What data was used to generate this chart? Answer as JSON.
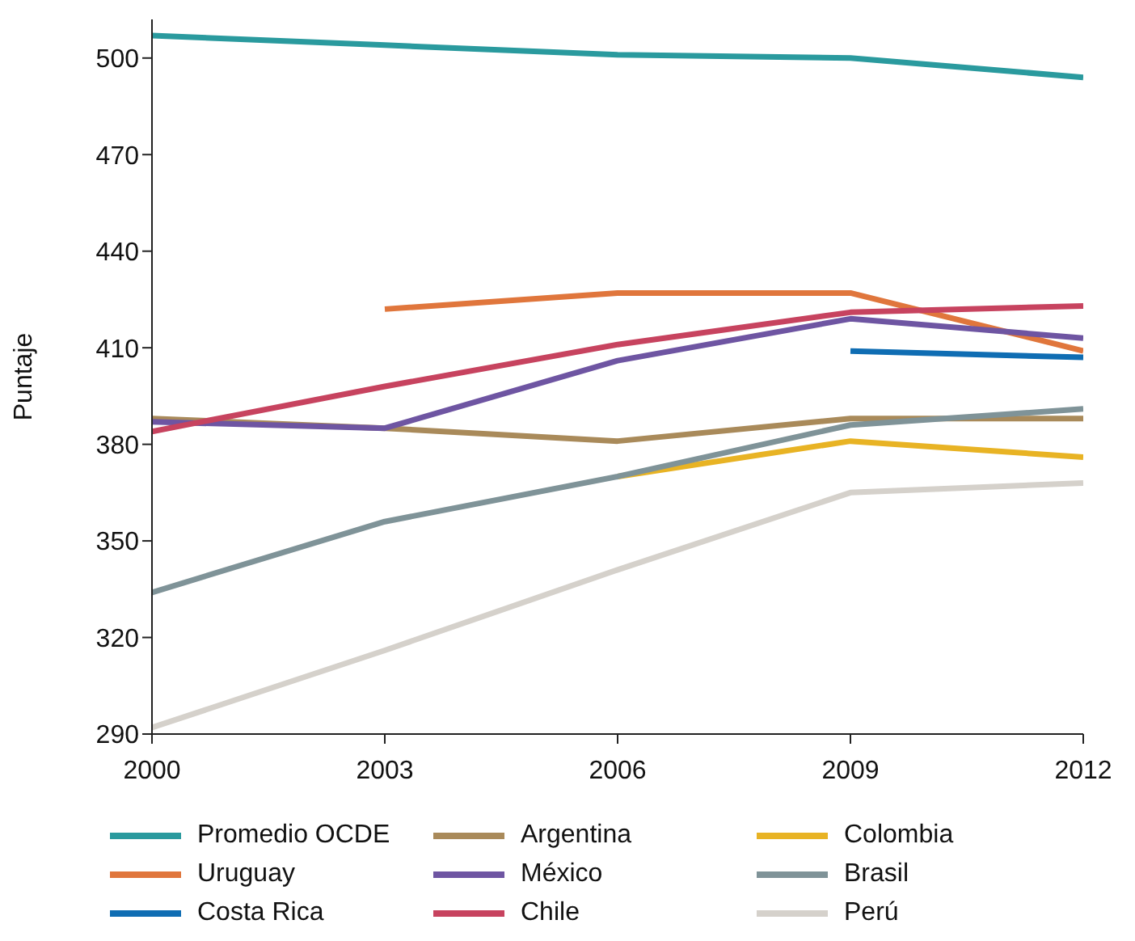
{
  "chart_data": {
    "type": "line",
    "ylabel": "Puntaje",
    "x": [
      2000,
      2003,
      2006,
      2009,
      2012
    ],
    "xlim": [
      2000,
      2012
    ],
    "xticks": [
      2000,
      2003,
      2006,
      2009,
      2012
    ],
    "ylim": [
      290,
      512
    ],
    "yticks": [
      290,
      320,
      350,
      380,
      410,
      440,
      470,
      500
    ],
    "grid": false,
    "legend": "bottom",
    "marker": "none",
    "line_style": "solid",
    "series": [
      {
        "name": "Promedio OCDE",
        "color": "#2a9a9e",
        "values": [
          507,
          504,
          501,
          500,
          494
        ]
      },
      {
        "name": "Argentina",
        "color": "#a98a5a",
        "values": [
          388,
          385,
          381,
          388,
          388
        ]
      },
      {
        "name": "Colombia",
        "color": "#e8b324",
        "values": [
          null,
          null,
          370,
          381,
          376
        ]
      },
      {
        "name": "Uruguay",
        "color": "#e0763c",
        "values": [
          null,
          422,
          427,
          427,
          409
        ]
      },
      {
        "name": "México",
        "color": "#6e55a2",
        "values": [
          387,
          385,
          406,
          419,
          413
        ]
      },
      {
        "name": "Brasil",
        "color": "#7f9398",
        "values": [
          334,
          356,
          370,
          386,
          391
        ]
      },
      {
        "name": "Costa Rica",
        "color": "#0f6db3",
        "values": [
          null,
          null,
          null,
          409,
          407
        ]
      },
      {
        "name": "Chile",
        "color": "#c7435f",
        "values": [
          384,
          398,
          411,
          421,
          423
        ]
      },
      {
        "name": "Perú",
        "color": "#d5d1cb",
        "values": [
          292,
          316,
          341,
          365,
          368
        ]
      }
    ]
  }
}
